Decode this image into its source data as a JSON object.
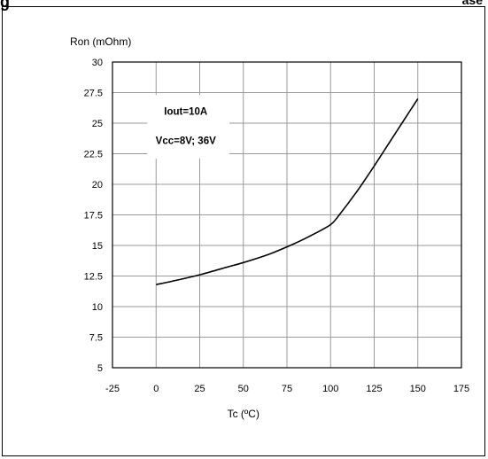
{
  "header": {
    "left_fragment": "g",
    "right_fragment": "ase"
  },
  "chart_data": {
    "type": "line",
    "title": "",
    "xlabel": "Tc (ºC)",
    "ylabel": "Ron (mOhm)",
    "xlim": [
      -25,
      175
    ],
    "ylim": [
      5,
      30
    ],
    "x_ticks": [
      -25,
      0,
      25,
      50,
      75,
      100,
      125,
      150,
      175
    ],
    "y_ticks": [
      5,
      7.5,
      10,
      12.5,
      15,
      17.5,
      20,
      22.5,
      25,
      27.5,
      30
    ],
    "grid": true,
    "annotations": [
      "Iout=10A",
      "Vcc=8V; 36V"
    ],
    "series": [
      {
        "x": [
          0,
          10,
          25,
          40,
          50,
          65,
          80,
          90,
          100,
          105,
          115,
          125,
          135,
          150
        ],
        "y": [
          11.8,
          12.1,
          12.6,
          13.2,
          13.6,
          14.3,
          15.2,
          15.9,
          16.7,
          17.5,
          19.4,
          21.5,
          23.7,
          27.0
        ]
      }
    ]
  }
}
